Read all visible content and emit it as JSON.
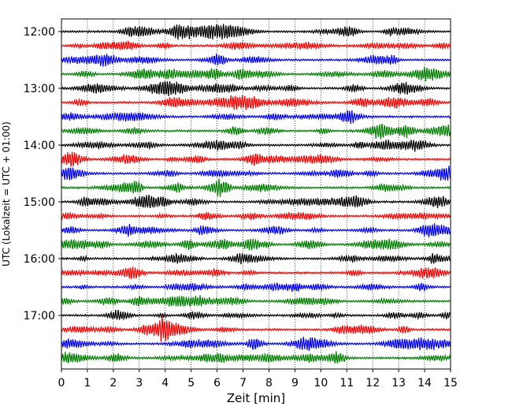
{
  "chart_data": {
    "type": "line",
    "title": "",
    "xlabel": "Zeit  [min]",
    "ylabel": "UTC (Lokalzeit = UTC + 01:00)",
    "xlim": [
      0,
      15
    ],
    "x_ticks": [
      "0",
      "1",
      "2",
      "3",
      "4",
      "5",
      "6",
      "7",
      "8",
      "9",
      "10",
      "11",
      "12",
      "13",
      "14",
      "15"
    ],
    "y_ticks": [
      "12:00",
      "13:00",
      "14:00",
      "15:00",
      "16:00",
      "17:00"
    ],
    "row_interval_minutes": 15,
    "rows_start": "12:00",
    "rows_end": "17:45",
    "row_count": 24,
    "grid": "vertical-dotted",
    "trace_colors": [
      "#000000",
      "#ff0000",
      "#0000ff",
      "#007f00"
    ]
  }
}
